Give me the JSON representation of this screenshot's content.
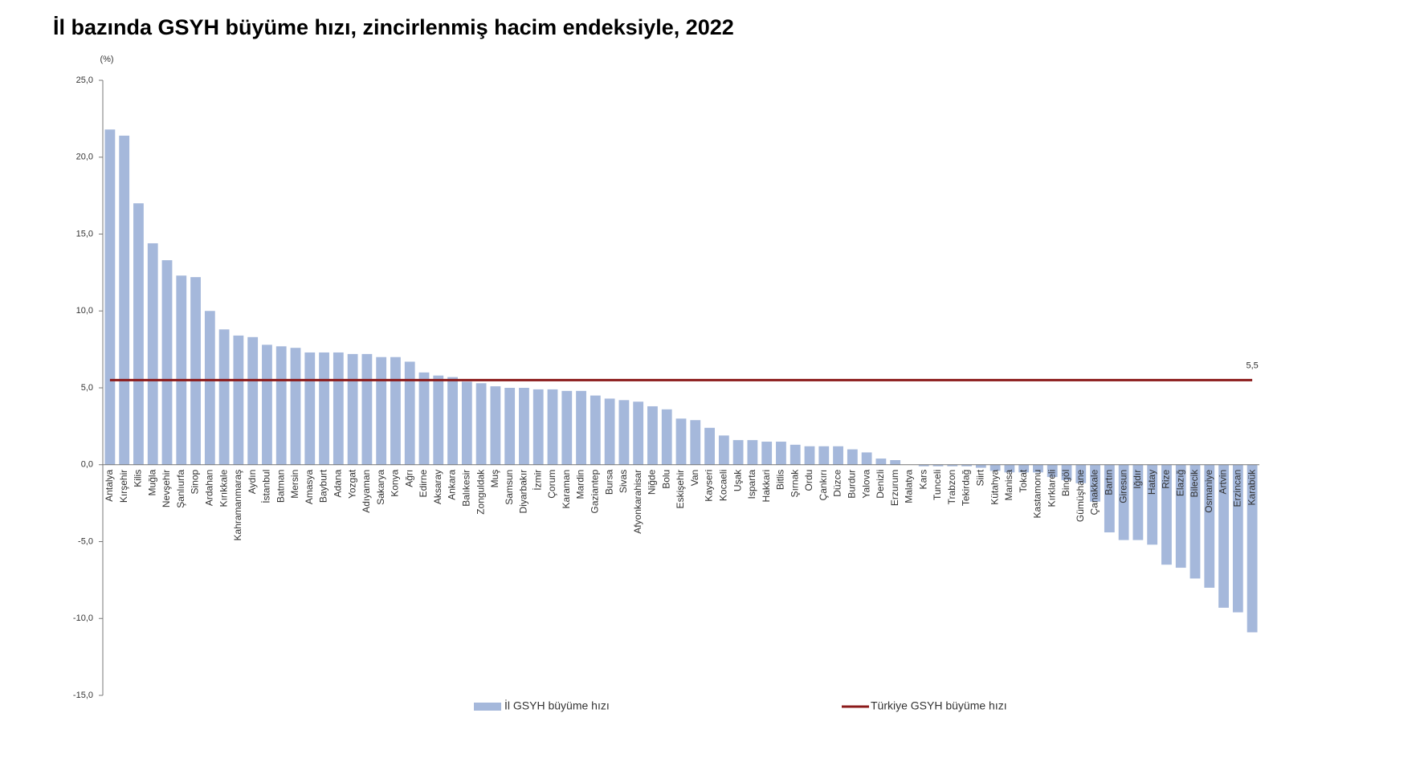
{
  "chart_data": {
    "type": "bar",
    "title": "İl bazında GSYH büyüme hızı, zincirlenmiş hacim endeksiyle, 2022",
    "y_label": "(%)",
    "categories": [
      "Antalya",
      "Kırşehir",
      "Kilis",
      "Muğla",
      "Nevşehir",
      "Şanlıurfa",
      "Sinop",
      "Ardahan",
      "Kırıkkale",
      "Kahramanmaraş",
      "Aydın",
      "İstanbul",
      "Batman",
      "Mersin",
      "Amasya",
      "Bayburt",
      "Adana",
      "Yozgat",
      "Adıyaman",
      "Sakarya",
      "Konya",
      "Ağrı",
      "Edirne",
      "Aksaray",
      "Ankara",
      "Balıkesir",
      "Zonguldak",
      "Muş",
      "Samsun",
      "Diyarbakır",
      "İzmir",
      "Çorum",
      "Karaman",
      "Mardin",
      "Gaziantep",
      "Bursa",
      "Sivas",
      "Afyonkarahisar",
      "Niğde",
      "Bolu",
      "Eskişehir",
      "Van",
      "Kayseri",
      "Kocaeli",
      "Uşak",
      "Isparta",
      "Hakkari",
      "Bitlis",
      "Şırnak",
      "Ordu",
      "Çankırı",
      "Düzce",
      "Burdur",
      "Yalova",
      "Denizli",
      "Erzurum",
      "Malatya",
      "Kars",
      "Tunceli",
      "Trabzon",
      "Tekirdağ",
      "Siirt",
      "Kütahya",
      "Manisa",
      "Tokat",
      "Kastamonu",
      "Kırklareli",
      "Bingöl",
      "Gümüşhane",
      "Çanakkale",
      "Bartın",
      "Giresun",
      "Iğdır",
      "Hatay",
      "Rize",
      "Elazığ",
      "Bilecik",
      "Osmaniye",
      "Artvin",
      "Erzincan",
      "Karabük"
    ],
    "series": [
      {
        "name": "İl GSYH büyüme hızı",
        "color": "#a5b8db",
        "values": [
          21.8,
          21.4,
          17.0,
          14.4,
          13.3,
          12.3,
          12.2,
          10.0,
          8.8,
          8.4,
          8.3,
          7.8,
          7.7,
          7.6,
          7.3,
          7.3,
          7.3,
          7.2,
          7.2,
          7.0,
          7.0,
          6.7,
          6.0,
          5.8,
          5.7,
          5.4,
          5.3,
          5.1,
          5.0,
          5.0,
          4.9,
          4.9,
          4.8,
          4.8,
          4.5,
          4.3,
          4.2,
          4.1,
          3.8,
          3.6,
          3.0,
          2.9,
          2.4,
          1.9,
          1.6,
          1.6,
          1.5,
          1.5,
          1.3,
          1.2,
          1.2,
          1.2,
          1.0,
          0.8,
          0.4,
          0.3,
          0.0,
          -0.1,
          -0.1,
          -0.1,
          -0.1,
          -0.2,
          -0.4,
          -0.5,
          -0.5,
          -0.5,
          -0.8,
          -1.0,
          -1.2,
          -2.4,
          -4.4,
          -4.9,
          -4.9,
          -5.2,
          -6.5,
          -6.7,
          -7.4,
          -8.0,
          -9.3,
          -9.6,
          -10.9
        ]
      }
    ],
    "reference_line": {
      "name": "Türkiye GSYH büyüme hızı",
      "value": 5.5,
      "label": "5,5",
      "color": "#8b1a1a"
    },
    "ylim": [
      -15,
      25
    ],
    "yticks": [
      {
        "value": -15,
        "label": "-15,0"
      },
      {
        "value": -10,
        "label": "-10,0"
      },
      {
        "value": -5,
        "label": "-5,0"
      },
      {
        "value": 0,
        "label": "0,0"
      },
      {
        "value": 5,
        "label": "5,0"
      },
      {
        "value": 10,
        "label": "10,0"
      },
      {
        "value": 15,
        "label": "15,0"
      },
      {
        "value": 20,
        "label": "20,0"
      },
      {
        "value": 25,
        "label": "25,0"
      }
    ],
    "grid": false
  }
}
